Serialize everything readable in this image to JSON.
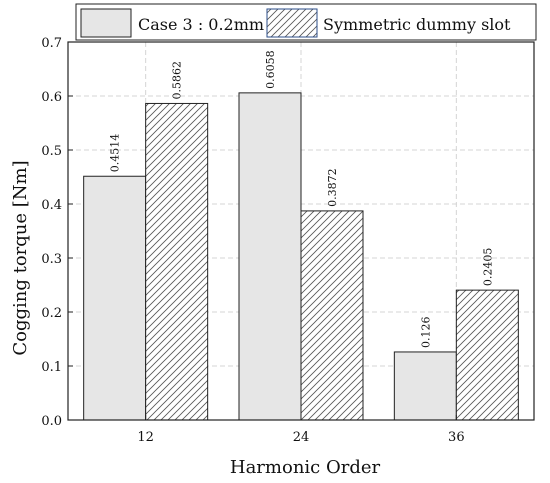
{
  "chart_data": {
    "type": "bar",
    "title": "",
    "xlabel": "Harmonic Order",
    "ylabel": "Cogging torque [Nm]",
    "categories": [
      "12",
      "24",
      "36"
    ],
    "ylim": [
      0,
      0.7
    ],
    "yticks": [
      "0.0",
      "0.1",
      "0.2",
      "0.3",
      "0.4",
      "0.5",
      "0.6",
      "0.7"
    ],
    "grid": true,
    "legend_position": "top",
    "series": [
      {
        "name": "Case 3 : 0.2mm",
        "values": [
          0.4514,
          0.6058,
          0.126
        ],
        "labels": [
          "0.4514",
          "0.6058",
          "0.126"
        ],
        "fill": "#e6e6e6",
        "pattern": "solid"
      },
      {
        "name": "Symmetric dummy slot",
        "values": [
          0.5862,
          0.3872,
          0.2405
        ],
        "labels": [
          "0.5862",
          "0.3872",
          "0.2405"
        ],
        "fill": "#ffffff",
        "pattern": "hatched"
      }
    ]
  }
}
